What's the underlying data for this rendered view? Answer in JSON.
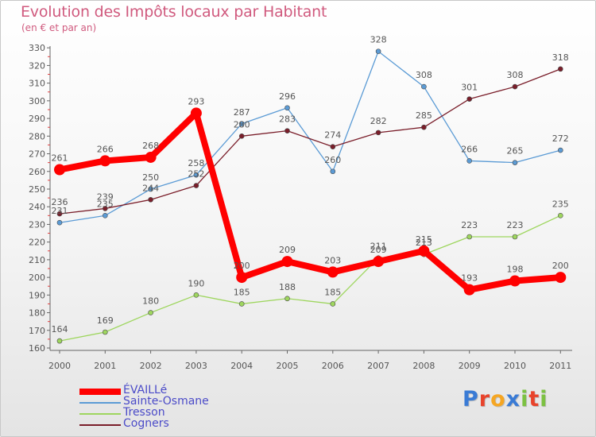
{
  "title": "Evolution des Impôts locaux par Habitant",
  "subtitle": "(en € et par an)",
  "logo": {
    "text": "Proxiti",
    "letters": [
      {
        "ch": "P",
        "color": "#3a7bd5"
      },
      {
        "ch": "r",
        "color": "#e8432b"
      },
      {
        "ch": "o",
        "color": "#f5a623"
      },
      {
        "ch": "x",
        "color": "#3a7bd5"
      },
      {
        "ch": "i",
        "color": "#7cc142"
      },
      {
        "ch": "t",
        "color": "#e8432b"
      },
      {
        "ch": "i",
        "color": "#7cc142"
      }
    ]
  },
  "chart_data": {
    "type": "line",
    "title": "Evolution des Impôts locaux par Habitant",
    "subtitle": "(en € et par an)",
    "xlabel": "",
    "ylabel": "",
    "categories": [
      "2000",
      "2001",
      "2002",
      "2003",
      "2004",
      "2005",
      "2006",
      "2007",
      "2008",
      "2009",
      "2010",
      "2011"
    ],
    "ylim": [
      160,
      330
    ],
    "yticks": [
      160,
      170,
      180,
      190,
      200,
      210,
      220,
      230,
      240,
      250,
      260,
      270,
      280,
      290,
      300,
      310,
      320,
      330
    ],
    "grid": false,
    "legend_position": "bottom-left",
    "series": [
      {
        "name": "ÉVAILLé",
        "color": "#ff0000",
        "width": 8,
        "marker": 7,
        "values": [
          261,
          266,
          268,
          293,
          200,
          209,
          203,
          209,
          215,
          193,
          198,
          200
        ]
      },
      {
        "name": "Sainte-Osmane",
        "color": "#5b9bd5",
        "width": 1.3,
        "marker": 3,
        "values": [
          231,
          235,
          250,
          258,
          287,
          296,
          260,
          328,
          308,
          266,
          265,
          272
        ]
      },
      {
        "name": "Tresson",
        "color": "#9ed65e",
        "width": 1.3,
        "marker": 3,
        "values": [
          164,
          169,
          180,
          190,
          185,
          188,
          185,
          211,
          213,
          223,
          223,
          235
        ]
      },
      {
        "name": "Cogners",
        "color": "#7a1e2a",
        "width": 1.3,
        "marker": 3,
        "values": [
          236,
          239,
          244,
          252,
          280,
          283,
          274,
          282,
          285,
          301,
          308,
          318
        ]
      }
    ]
  }
}
